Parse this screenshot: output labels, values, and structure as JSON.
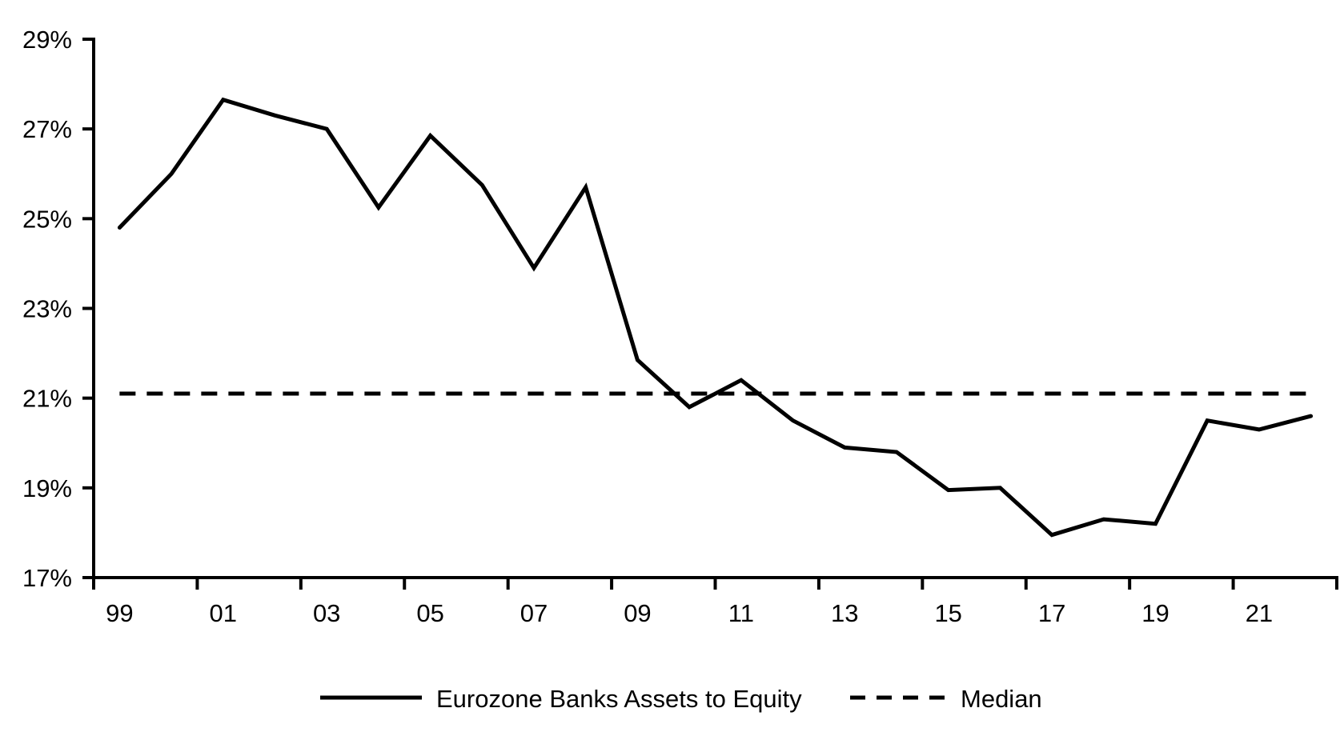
{
  "chart_data": {
    "type": "line",
    "title": "",
    "xlabel": "",
    "ylabel": "",
    "x": [
      1999,
      2000,
      2001,
      2002,
      2003,
      2004,
      2005,
      2006,
      2007,
      2008,
      2009,
      2010,
      2011,
      2012,
      2013,
      2014,
      2015,
      2016,
      2017,
      2018,
      2019,
      2020,
      2021,
      2022
    ],
    "x_tick_labels": [
      "99",
      "01",
      "03",
      "05",
      "07",
      "09",
      "11",
      "13",
      "15",
      "17",
      "19",
      "21"
    ],
    "y_ticks": [
      29,
      27,
      25,
      23,
      21,
      19,
      17
    ],
    "y_tick_labels": [
      "29%",
      "27%",
      "25%",
      "23%",
      "21%",
      "19%",
      "17%"
    ],
    "ylim": [
      17,
      29
    ],
    "grid": false,
    "legend_position": "bottom-center",
    "color": "#000000",
    "background": "#ffffff",
    "series": [
      {
        "name": "Eurozone Banks Assets to Equity",
        "line_style": "solid",
        "values": [
          24.8,
          26.0,
          27.65,
          27.3,
          27.0,
          25.25,
          26.85,
          25.75,
          23.9,
          25.7,
          21.85,
          20.8,
          21.4,
          20.5,
          19.9,
          19.8,
          18.95,
          19.0,
          17.95,
          18.3,
          18.2,
          20.5,
          20.3,
          20.6
        ]
      },
      {
        "name": "Median",
        "line_style": "dashed",
        "constant_value": 21.1
      }
    ]
  }
}
